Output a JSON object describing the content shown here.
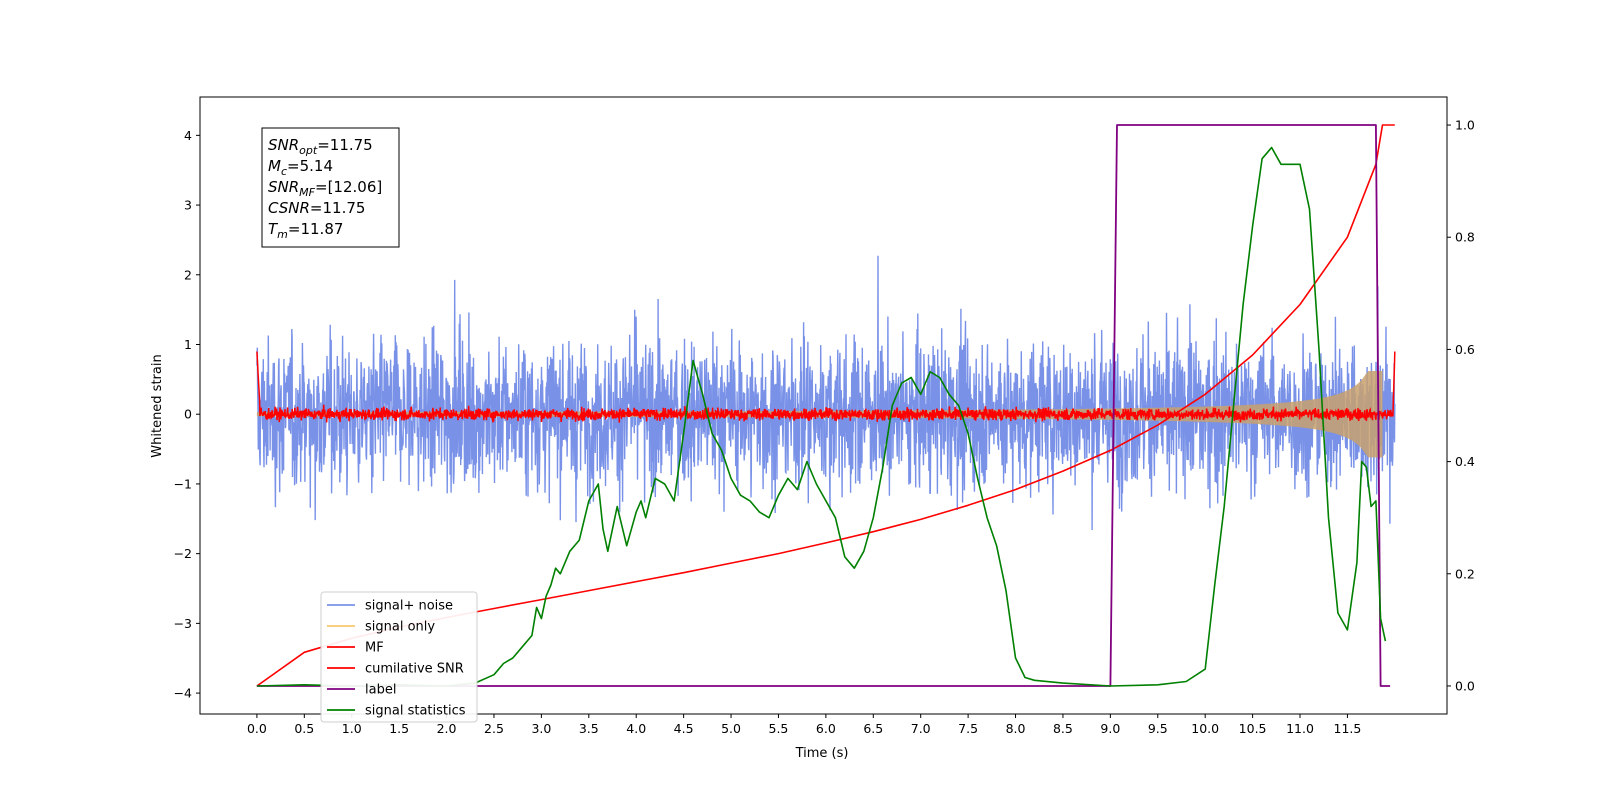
{
  "chart_data": {
    "type": "line",
    "xlabel": "Time (s)",
    "ylabel_left": "Whitened strain",
    "ylabel_right": "",
    "xlim": [
      -0.6,
      12.55
    ],
    "ylim_left": [
      -4.3,
      4.55
    ],
    "ylim_right": [
      -0.05,
      1.05
    ],
    "grid": false,
    "legend_position": "lower-left",
    "x_ticks": [
      0.0,
      0.5,
      1.0,
      1.5,
      2.0,
      2.5,
      3.0,
      3.5,
      4.0,
      4.5,
      5.0,
      5.5,
      6.0,
      6.5,
      7.0,
      7.5,
      8.0,
      8.5,
      9.0,
      9.5,
      10.0,
      10.5,
      11.0,
      11.5
    ],
    "x_tick_labels": [
      "0.0",
      "0.5",
      "1.0",
      "1.5",
      "2.0",
      "2.5",
      "3.0",
      "3.5",
      "4.0",
      "4.5",
      "5.0",
      "5.5",
      "6.0",
      "6.5",
      "7.0",
      "7.5",
      "8.0",
      "8.5",
      "9.0",
      "9.5",
      "10.0",
      "10.5",
      "11.0",
      "11.5"
    ],
    "y_ticks_left": [
      -4,
      -3,
      -2,
      -1,
      0,
      1,
      2,
      3,
      4
    ],
    "y_tick_labels_left": [
      "−4",
      "−3",
      "−2",
      "−1",
      "0",
      "1",
      "2",
      "3",
      "4"
    ],
    "y_ticks_right": [
      0.0,
      0.2,
      0.4,
      0.6,
      0.8,
      1.0
    ],
    "y_tick_labels_right": [
      "0.0",
      "0.2",
      "0.4",
      "0.6",
      "0.8",
      "1.0"
    ],
    "annotation": [
      {
        "base": "SNR",
        "sub": "opt",
        "value": "=11.75"
      },
      {
        "base": "M",
        "sub": "c",
        "value": "=5.14"
      },
      {
        "base": "SNR",
        "sub": "MF",
        "value": "=[12.06]"
      },
      {
        "base": "CSNR",
        "sub": "",
        "value": "=11.75"
      },
      {
        "base": "T",
        "sub": "m",
        "value": "=11.87"
      }
    ],
    "series": [
      {
        "name": "signal+ noise",
        "color": "#7992e8",
        "axis": "left",
        "kind": "noise",
        "x_range": [
          0.0,
          12.0
        ],
        "amplitude_std": 0.95
      },
      {
        "name": "signal only",
        "color": "#f7c86e",
        "axis": "left",
        "kind": "chirp_envelope",
        "x_range": [
          0.0,
          11.87
        ],
        "max_amplitude": 0.62
      },
      {
        "name": "MF",
        "color": "#ff0000",
        "axis": "left",
        "kind": "noise",
        "x_range": [
          0.0,
          12.0
        ],
        "amplitude_std": 0.06
      },
      {
        "name": "cumilative SNR",
        "color": "#ff0000",
        "axis": "right",
        "x": [
          0.0,
          0.5,
          1.0,
          1.5,
          2.0,
          2.5,
          3.0,
          3.5,
          4.0,
          4.5,
          5.0,
          5.5,
          6.0,
          6.5,
          7.0,
          7.5,
          8.0,
          8.5,
          9.0,
          9.5,
          10.0,
          10.5,
          11.0,
          11.5,
          11.8,
          11.87,
          12.0
        ],
        "y": [
          0.0,
          0.06,
          0.085,
          0.105,
          0.122,
          0.138,
          0.154,
          0.17,
          0.186,
          0.202,
          0.219,
          0.236,
          0.255,
          0.275,
          0.297,
          0.322,
          0.35,
          0.383,
          0.42,
          0.465,
          0.52,
          0.59,
          0.68,
          0.8,
          0.93,
          1.0,
          1.0
        ]
      },
      {
        "name": "label",
        "color": "#800080",
        "axis": "right",
        "x": [
          0.0,
          9.0,
          9.07,
          11.8,
          11.85,
          11.95
        ],
        "y": [
          0.0,
          0.0,
          1.0,
          1.0,
          0.0,
          0.0
        ]
      },
      {
        "name": "signal statistics",
        "color": "#008000",
        "axis": "right",
        "x": [
          0.0,
          0.5,
          1.0,
          1.5,
          2.0,
          2.3,
          2.5,
          2.6,
          2.7,
          2.8,
          2.9,
          2.95,
          3.0,
          3.05,
          3.1,
          3.15,
          3.2,
          3.3,
          3.4,
          3.5,
          3.6,
          3.65,
          3.7,
          3.8,
          3.9,
          4.0,
          4.05,
          4.1,
          4.2,
          4.3,
          4.4,
          4.5,
          4.6,
          4.7,
          4.8,
          4.9,
          5.0,
          5.1,
          5.2,
          5.3,
          5.4,
          5.5,
          5.6,
          5.7,
          5.8,
          5.9,
          6.0,
          6.1,
          6.2,
          6.3,
          6.4,
          6.5,
          6.6,
          6.7,
          6.8,
          6.9,
          7.0,
          7.1,
          7.2,
          7.3,
          7.4,
          7.5,
          7.6,
          7.7,
          7.8,
          7.9,
          8.0,
          8.1,
          8.2,
          8.5,
          9.0,
          9.5,
          9.8,
          10.0,
          10.1,
          10.2,
          10.3,
          10.4,
          10.5,
          10.6,
          10.7,
          10.8,
          10.9,
          11.0,
          11.1,
          11.2,
          11.3,
          11.4,
          11.5,
          11.6,
          11.65,
          11.7,
          11.75,
          11.8,
          11.85,
          11.9
        ],
        "y": [
          0.0,
          0.002,
          0.0,
          0.002,
          0.0,
          0.005,
          0.02,
          0.04,
          0.05,
          0.07,
          0.09,
          0.14,
          0.12,
          0.16,
          0.18,
          0.21,
          0.2,
          0.24,
          0.26,
          0.33,
          0.36,
          0.28,
          0.24,
          0.32,
          0.25,
          0.31,
          0.33,
          0.3,
          0.37,
          0.36,
          0.33,
          0.45,
          0.58,
          0.52,
          0.45,
          0.42,
          0.37,
          0.34,
          0.33,
          0.31,
          0.3,
          0.34,
          0.37,
          0.35,
          0.4,
          0.36,
          0.33,
          0.3,
          0.23,
          0.21,
          0.24,
          0.3,
          0.39,
          0.5,
          0.54,
          0.55,
          0.52,
          0.56,
          0.55,
          0.52,
          0.5,
          0.45,
          0.37,
          0.3,
          0.25,
          0.17,
          0.05,
          0.015,
          0.01,
          0.005,
          0.0,
          0.002,
          0.008,
          0.03,
          0.18,
          0.32,
          0.5,
          0.68,
          0.82,
          0.94,
          0.96,
          0.93,
          0.93,
          0.93,
          0.85,
          0.6,
          0.3,
          0.13,
          0.1,
          0.22,
          0.4,
          0.39,
          0.32,
          0.33,
          0.12,
          0.08
        ]
      }
    ]
  }
}
